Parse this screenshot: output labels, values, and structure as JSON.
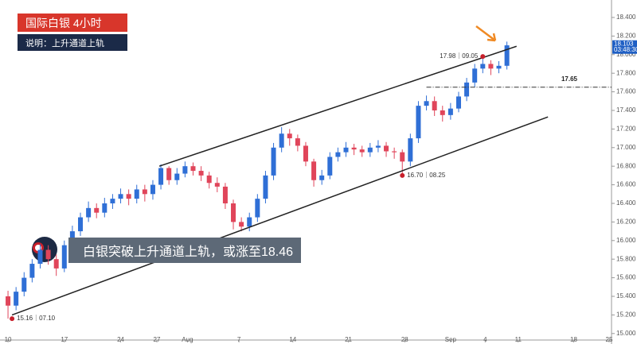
{
  "chart_data": {
    "type": "candlestick",
    "title": "国际白银  4小时",
    "subtitle": "说明：上升通道上轨",
    "headline": "白银突破上升通道上轨，或涨至18.46",
    "xlim": [
      -0.5,
      75
    ],
    "xticks": [
      {
        "value": 0,
        "label": "10"
      },
      {
        "value": 7,
        "label": "17"
      },
      {
        "value": 14,
        "label": "24"
      },
      {
        "value": 18.5,
        "label": "27"
      },
      {
        "value": 22.3,
        "label": "Aug"
      },
      {
        "value": 28.7,
        "label": "7"
      },
      {
        "value": 35.4,
        "label": "14"
      },
      {
        "value": 42.3,
        "label": "21"
      },
      {
        "value": 49.3,
        "label": "28"
      },
      {
        "value": 55,
        "label": "Sep"
      },
      {
        "value": 59.3,
        "label": "4"
      },
      {
        "value": 63.4,
        "label": "11"
      },
      {
        "value": 70.3,
        "label": "18"
      },
      {
        "value": 74.7,
        "label": "25"
      }
    ],
    "ylim": [
      14.93,
      18.545
    ],
    "yticks": [
      {
        "value": 15,
        "label": "15.000"
      },
      {
        "value": 15.2,
        "label": "15.200"
      },
      {
        "value": 15.4,
        "label": "15.400"
      },
      {
        "value": 15.6,
        "label": "15.600"
      },
      {
        "value": 15.8,
        "label": "15.800"
      },
      {
        "value": 16,
        "label": "16.000"
      },
      {
        "value": 16.2,
        "label": "16.200"
      },
      {
        "value": 16.4,
        "label": "16.400"
      },
      {
        "value": 16.6,
        "label": "16.600"
      },
      {
        "value": 16.8,
        "label": "16.800"
      },
      {
        "value": 17,
        "label": "17.000"
      },
      {
        "value": 17.2,
        "label": "17.200"
      },
      {
        "value": 17.4,
        "label": "17.400"
      },
      {
        "value": 17.6,
        "label": "17.600"
      },
      {
        "value": 17.8,
        "label": "17.800"
      },
      {
        "value": 18,
        "label": "18.000"
      },
      {
        "value": 18.2,
        "label": "18.200"
      },
      {
        "value": 18.4,
        "label": "18.400"
      }
    ],
    "up_color": "#2f6fd6",
    "down_color": "#e0455a",
    "series": {
      "x": [
        0,
        1,
        2,
        3,
        4,
        5,
        6,
        7,
        8,
        9,
        10,
        11,
        12,
        13,
        14,
        15,
        16,
        17,
        18,
        19,
        20,
        21,
        22,
        23,
        24,
        25,
        26,
        27,
        28,
        29,
        30,
        31,
        32,
        33,
        34,
        35,
        36,
        37,
        38,
        39,
        40,
        41,
        42,
        43,
        44,
        45,
        46,
        47,
        48,
        49,
        50,
        51,
        52,
        53,
        54,
        55,
        56,
        57,
        58,
        59,
        60,
        61,
        62
      ],
      "open": [
        15.4,
        15.3,
        15.45,
        15.6,
        15.75,
        15.9,
        15.8,
        15.7,
        15.95,
        16.1,
        16.25,
        16.35,
        16.3,
        16.4,
        16.45,
        16.5,
        16.45,
        16.55,
        16.5,
        16.6,
        16.78,
        16.65,
        16.72,
        16.8,
        16.75,
        16.7,
        16.62,
        16.58,
        16.4,
        16.2,
        16.15,
        16.25,
        16.45,
        16.7,
        17.0,
        17.15,
        17.1,
        17.02,
        16.85,
        16.65,
        16.7,
        16.9,
        16.95,
        17.0,
        16.98,
        16.95,
        17.0,
        17.02,
        16.96,
        16.95,
        16.85,
        17.1,
        17.45,
        17.5,
        17.4,
        17.35,
        17.42,
        17.55,
        17.7,
        17.85,
        17.9,
        17.85,
        17.88
      ],
      "high": [
        15.46,
        15.5,
        15.66,
        15.8,
        15.96,
        15.95,
        15.85,
        16.0,
        16.16,
        16.3,
        16.42,
        16.4,
        16.46,
        16.5,
        16.56,
        16.55,
        16.6,
        16.6,
        16.65,
        16.82,
        16.8,
        16.78,
        16.85,
        16.84,
        16.8,
        16.74,
        16.68,
        16.62,
        16.44,
        16.25,
        16.3,
        16.5,
        16.75,
        17.05,
        17.22,
        17.2,
        17.14,
        17.06,
        16.88,
        16.76,
        16.95,
        17.0,
        17.06,
        17.04,
        17.02,
        17.05,
        17.08,
        17.06,
        17.0,
        16.98,
        17.15,
        17.5,
        17.56,
        17.55,
        17.45,
        17.48,
        17.6,
        17.75,
        17.9,
        17.98,
        17.94,
        17.93,
        18.14
      ],
      "low": [
        15.16,
        15.25,
        15.4,
        15.55,
        15.7,
        15.74,
        15.62,
        15.66,
        15.9,
        16.05,
        16.2,
        16.24,
        16.25,
        16.34,
        16.4,
        16.38,
        16.4,
        16.42,
        16.44,
        16.55,
        16.6,
        16.6,
        16.68,
        16.7,
        16.64,
        16.56,
        16.52,
        16.34,
        16.12,
        16.1,
        16.1,
        16.2,
        16.4,
        16.65,
        16.95,
        17.02,
        16.96,
        16.8,
        16.58,
        16.6,
        16.66,
        16.85,
        16.9,
        16.92,
        16.9,
        16.9,
        16.95,
        16.9,
        16.88,
        16.7,
        16.8,
        17.05,
        17.4,
        17.34,
        17.28,
        17.3,
        17.38,
        17.5,
        17.65,
        17.8,
        17.78,
        17.8,
        17.84
      ],
      "close": [
        15.3,
        15.45,
        15.6,
        15.75,
        15.9,
        15.8,
        15.7,
        15.95,
        16.1,
        16.25,
        16.35,
        16.3,
        16.4,
        16.45,
        16.5,
        16.45,
        16.55,
        16.5,
        16.6,
        16.78,
        16.65,
        16.72,
        16.8,
        16.75,
        16.7,
        16.62,
        16.58,
        16.4,
        16.2,
        16.15,
        16.25,
        16.45,
        16.7,
        17.0,
        17.15,
        17.1,
        17.02,
        16.85,
        16.65,
        16.7,
        16.9,
        16.95,
        17.0,
        16.98,
        16.95,
        17.0,
        17.02,
        16.96,
        16.95,
        16.85,
        17.1,
        17.45,
        17.5,
        17.4,
        17.35,
        17.42,
        17.55,
        17.7,
        17.85,
        17.9,
        17.85,
        17.88,
        18.1
      ]
    },
    "trendlines": [
      {
        "x": [
          18.8,
          63.2
        ],
        "y": [
          16.8,
          18.09
        ]
      },
      {
        "x": [
          0.5,
          67.1
        ],
        "y": [
          15.2,
          17.33
        ]
      }
    ],
    "level": {
      "x": 52,
      "value": 17.65
    },
    "annotations": [
      {
        "x": 59,
        "y": 17.98,
        "text": "17.98｜09.05"
      },
      {
        "x": 49,
        "y": 16.7,
        "text": "16.70｜08.25"
      },
      {
        "x": 0.5,
        "y": 15.16,
        "text": "15.16｜07.10"
      }
    ],
    "last_price": {
      "value": 18.103,
      "label": "18.103",
      "time": "03:48:30"
    }
  }
}
